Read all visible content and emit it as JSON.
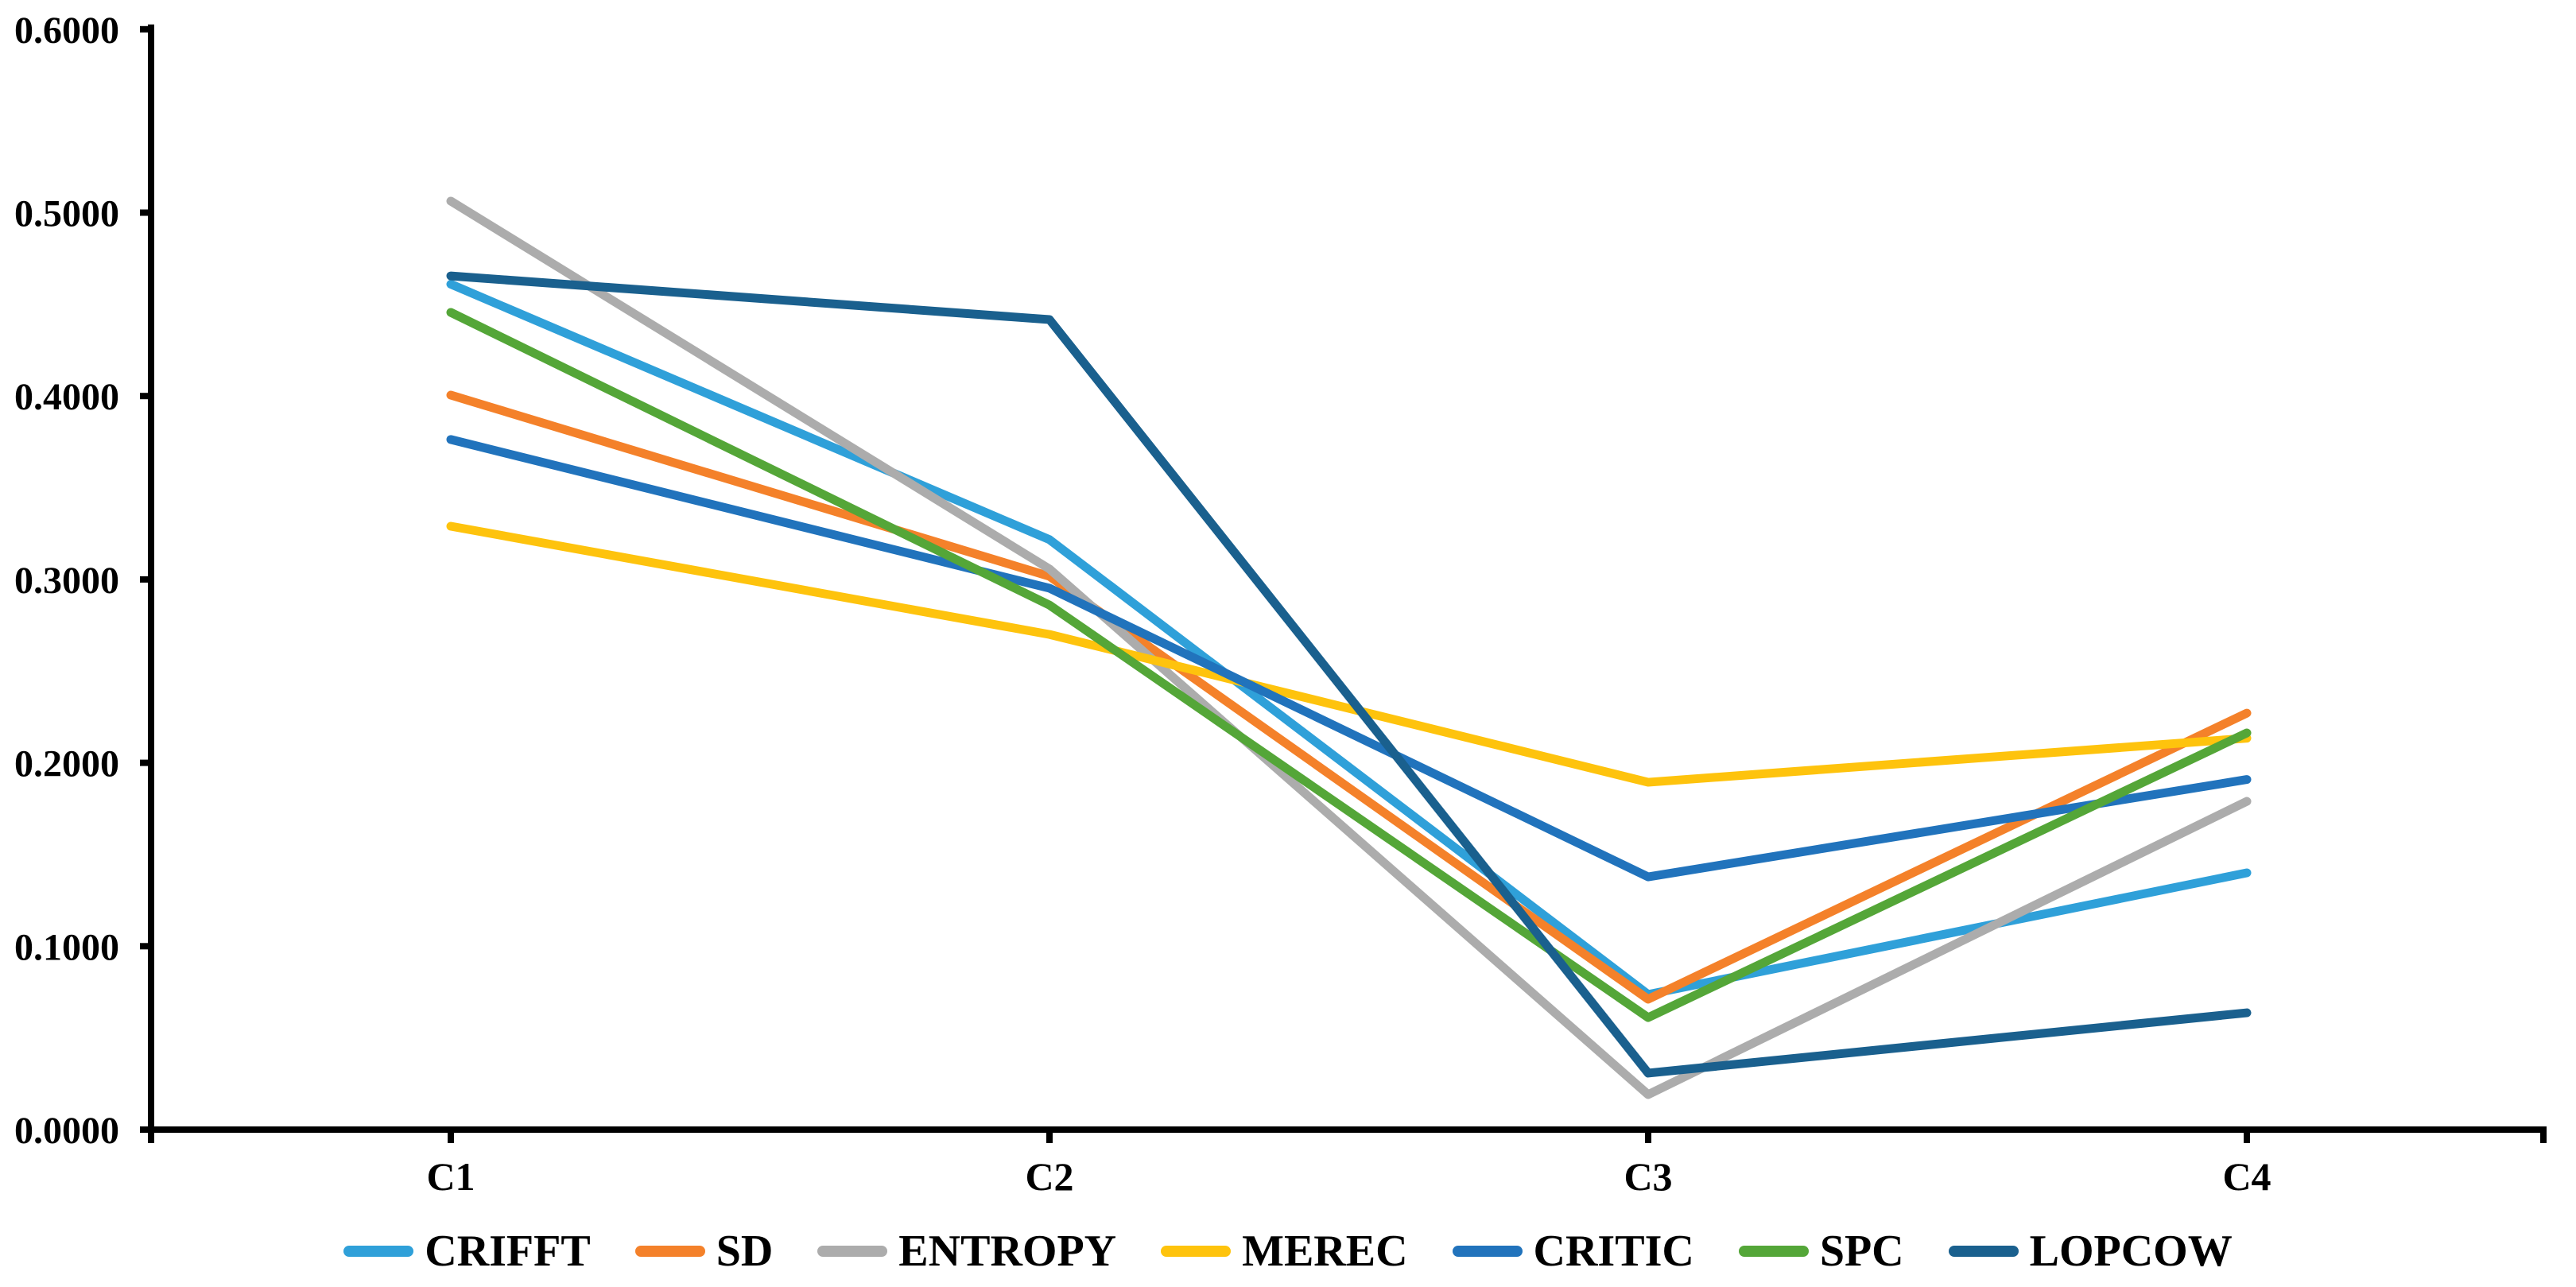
{
  "chart_data": {
    "type": "line",
    "title": "",
    "categories": [
      "C1",
      "C2",
      "C3",
      "C4"
    ],
    "series": [
      {
        "name": "CRIFFT",
        "color": "#2FA0D9",
        "values": [
          0.461,
          0.3217,
          0.0737,
          0.14
        ]
      },
      {
        "name": "SD",
        "color": "#F4812A",
        "values": [
          0.4005,
          0.3017,
          0.0711,
          0.2271
        ]
      },
      {
        "name": "ENTROPY",
        "color": "#ACACAC",
        "values": [
          0.5063,
          0.3057,
          0.0191,
          0.179
        ]
      },
      {
        "name": "MEREC",
        "color": "#FEC30D",
        "values": [
          0.329,
          0.27,
          0.1894,
          0.2134
        ]
      },
      {
        "name": "CRITIC",
        "color": "#2173BC",
        "values": [
          0.3763,
          0.2952,
          0.1378,
          0.1909
        ]
      },
      {
        "name": "SPC",
        "color": "#54A638",
        "values": [
          0.4456,
          0.286,
          0.0611,
          0.2163
        ]
      },
      {
        "name": "LOPCOW",
        "color": "#1A608E",
        "values": [
          0.4655,
          0.4417,
          0.0308,
          0.0637
        ]
      }
    ],
    "y_axis": {
      "min": 0.0,
      "max": 0.6,
      "step": 0.1,
      "tick_labels": [
        "0.0000",
        "0.1000",
        "0.2000",
        "0.3000",
        "0.4000",
        "0.5000",
        "0.6000"
      ]
    },
    "x_axis": {
      "labels": [
        "C1",
        "C2",
        "C3",
        "C4"
      ]
    },
    "grid": false,
    "legend_position": "bottom",
    "axis_color": "#000000",
    "background_color": "#FFFFFF"
  }
}
